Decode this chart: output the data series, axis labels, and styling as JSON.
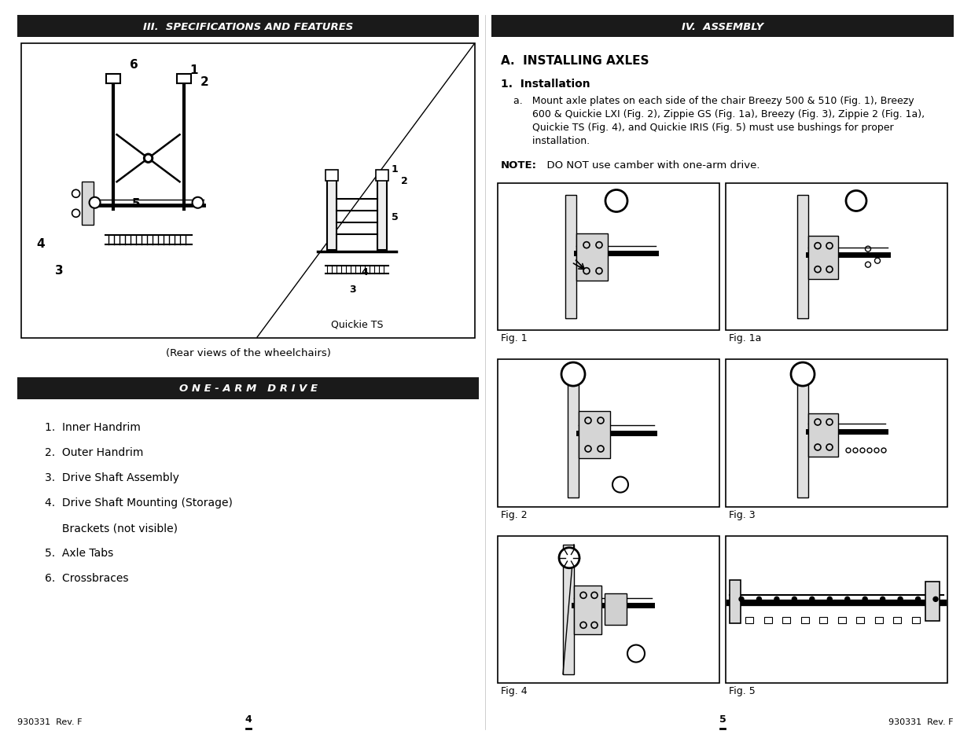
{
  "page_bg": "#ffffff",
  "left_panel": {
    "header_text": "III.  SPECIFICATIONS AND FEATURES",
    "header_bg": "#1a1a1a",
    "header_text_color": "#ffffff",
    "subheader_text": "O N E - A R M   D R I V E",
    "subheader_bg": "#1a1a1a",
    "subheader_text_color": "#ffffff",
    "caption_main": "(Rear views of the wheelchairs)",
    "diagram_label": "Quickie TS",
    "list_items": [
      "1.  Inner Handrim",
      "2.  Outer Handrim",
      "3.  Drive Shaft Assembly",
      "4.  Drive Shaft Mounting (Storage)",
      "     Brackets (not visible)",
      "5.  Axle Tabs",
      "6.  Crossbraces"
    ]
  },
  "right_panel": {
    "header_text": "IV.  ASSEMBLY",
    "header_bg": "#1a1a1a",
    "header_text_color": "#ffffff",
    "section_title": "A.  INSTALLING AXLES",
    "subsection_title": "1.  Installation",
    "instr_lines": [
      "a.   Mount axle plates on each side of the chair Breezy 500 & 510 (Fig. 1), Breezy",
      "      600 & Quickie LXI (Fig. 2), Zippie GS (Fig. 1a), Breezy (Fig. 3), Zippie 2 (Fig. 1a),",
      "      Quickie TS (Fig. 4), and Quickie IRIS (Fig. 5) must use bushings for proper",
      "      installation."
    ],
    "note_bold": "NOTE:",
    "note_rest": "  DO NOT use camber with one-arm drive.",
    "fig_labels": [
      "Fig. 1",
      "Fig. 1a",
      "Fig. 2",
      "Fig. 3",
      "Fig. 4",
      "Fig. 5"
    ]
  },
  "footer_left_text": "930331  Rev. F",
  "footer_page_left": "4",
  "footer_page_right": "5",
  "footer_right_text": "930331  Rev. F"
}
